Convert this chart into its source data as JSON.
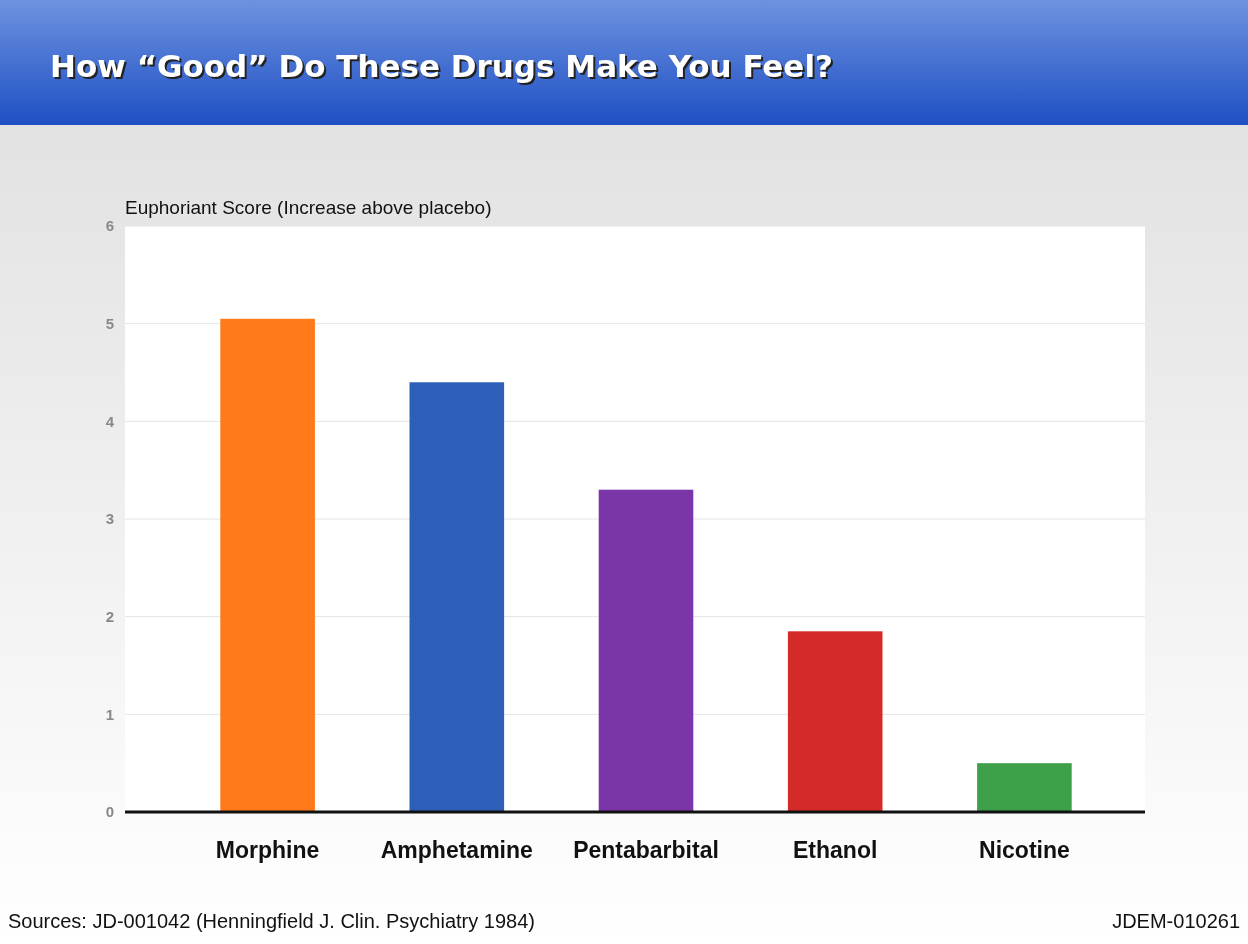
{
  "chart_data": {
    "type": "bar",
    "title": "How “Good” Do These Drugs Make You Feel?",
    "ylabel": "Euphoriant Score (Increase above placebo)",
    "categories": [
      "Morphine",
      "Amphetamine",
      "Pentabarbital",
      "Ethanol",
      "Nicotine"
    ],
    "values": [
      5.05,
      4.4,
      3.3,
      1.85,
      0.5
    ],
    "colors": [
      "#ff7a1a",
      "#2d5fb8",
      "#7a35a8",
      "#d42a2a",
      "#3fa04a"
    ],
    "ylim": [
      0,
      6
    ],
    "yticks": [
      0,
      1,
      2,
      3,
      4,
      5,
      6
    ],
    "grid": "y",
    "annotations": [
      "Sources: JD-001042 (Henningfield J. Clin. Psychiatry 1984)",
      "JDEM-010261"
    ]
  }
}
